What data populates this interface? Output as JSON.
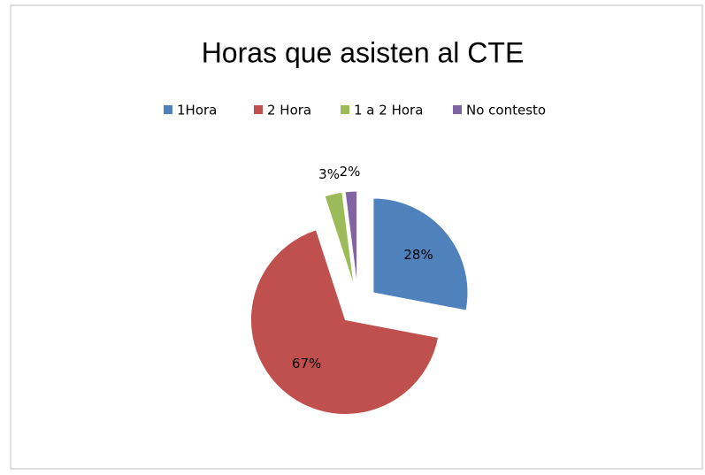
{
  "chart_data": {
    "type": "pie",
    "title": "Horas que asisten al CTE",
    "categories": [
      "1Hora",
      "2 Hora",
      "1 a 2 Hora",
      "No contesto"
    ],
    "values": [
      28,
      67,
      3,
      2
    ],
    "value_labels": [
      "28%",
      "67%",
      "3%",
      "2%"
    ],
    "colors": [
      "#4f81bd",
      "#c0504d",
      "#9bbb59",
      "#8064a2"
    ],
    "legend": "top"
  }
}
